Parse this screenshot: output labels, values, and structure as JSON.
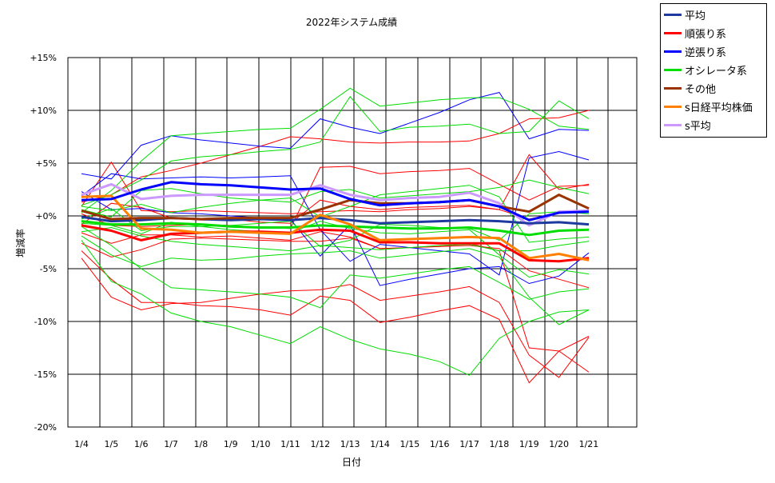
{
  "chart_data": {
    "type": "line",
    "title": "2022年システム成績",
    "xlabel": "日付",
    "ylabel": "増減率",
    "categories": [
      "1/4",
      "1/5",
      "1/6",
      "1/7",
      "1/8",
      "1/9",
      "1/10",
      "1/11",
      "1/12",
      "1/13",
      "1/14",
      "1/15",
      "1/16",
      "1/17",
      "1/18",
      "1/19",
      "1/20",
      "1/21"
    ],
    "ylim": [
      -20,
      15
    ],
    "yticks": [
      {
        "value": 15,
        "label": "+15%"
      },
      {
        "value": 10,
        "label": "+10%"
      },
      {
        "value": 5,
        "label": "+5%"
      },
      {
        "value": 0,
        "label": "+0%"
      },
      {
        "value": -5,
        "label": "-5%"
      },
      {
        "value": -10,
        "label": "-10%"
      },
      {
        "value": -15,
        "label": "-15%"
      },
      {
        "value": -20,
        "label": "-20%"
      }
    ],
    "grid": true,
    "legend_position": "top-right",
    "series": [
      {
        "name": "平均",
        "color": "#1f3a9e",
        "values": [
          -0.1,
          -0.5,
          -0.4,
          -0.2,
          -0.3,
          -0.4,
          -0.3,
          -0.4,
          -0.2,
          -0.4,
          -0.7,
          -0.6,
          -0.5,
          -0.4,
          -0.5,
          -0.7,
          -0.6,
          -0.8
        ]
      },
      {
        "name": "順張り系",
        "color": "#ff0000",
        "values": [
          -0.9,
          -1.4,
          -2.3,
          -1.7,
          -1.6,
          -1.5,
          -1.5,
          -1.6,
          -1.3,
          -1.4,
          -2.5,
          -2.5,
          -2.6,
          -2.6,
          -2.6,
          -4.2,
          -4.3,
          -4.0
        ]
      },
      {
        "name": "逆張り系",
        "color": "#0000ff",
        "values": [
          1.5,
          1.6,
          2.5,
          3.2,
          3.0,
          2.9,
          2.7,
          2.5,
          2.6,
          1.6,
          1.0,
          1.2,
          1.3,
          1.5,
          0.9,
          -0.4,
          0.3,
          0.4
        ]
      },
      {
        "name": "オシレータ系",
        "color": "#00dd00",
        "values": [
          -0.5,
          -0.8,
          -0.8,
          -0.7,
          -0.8,
          -1.0,
          -1.1,
          -1.1,
          -0.9,
          -1.0,
          -1.1,
          -1.2,
          -1.2,
          -1.1,
          -1.4,
          -1.8,
          -1.4,
          -1.3
        ]
      },
      {
        "name": "その他",
        "color": "#993300",
        "values": [
          0.5,
          -0.3,
          -0.2,
          -0.2,
          -0.3,
          -0.2,
          -0.2,
          -0.2,
          0.6,
          1.5,
          1.2,
          1.2,
          1.3,
          1.5,
          0.9,
          0.4,
          2.0,
          0.7
        ]
      },
      {
        "name": "s日経平均株価",
        "color": "#ff8000",
        "values": [
          1.8,
          1.9,
          -1.2,
          -1.3,
          -1.6,
          -1.5,
          -1.6,
          -1.7,
          0.1,
          -0.8,
          -2.3,
          -2.2,
          -2.1,
          -2.0,
          -2.1,
          -4.0,
          -3.6,
          -4.2
        ]
      },
      {
        "name": "s平均",
        "color": "#cc99ff",
        "values": [
          2.0,
          3.0,
          1.6,
          1.9,
          2.0,
          2.0,
          2.0,
          2.0,
          2.9,
          2.0,
          1.5,
          1.7,
          1.8,
          2.2,
          1.2,
          -0.9,
          0.4,
          0.5
        ]
      }
    ],
    "background_series": [
      {
        "color": "#ff0000",
        "values": [
          -0.8,
          1.2,
          0.8,
          -0.2,
          -0.4,
          -0.3,
          -0.6,
          -0.7,
          1.5,
          0.9,
          0.6,
          0.8,
          0.9,
          1.0,
          0.6,
          -0.3,
          0.3,
          0.5
        ]
      },
      {
        "color": "#ff0000",
        "values": [
          -1.6,
          -2.6,
          -1.8,
          -1.8,
          -2.0,
          -1.9,
          -2.1,
          -2.3,
          -1.5,
          -2.0,
          -3.1,
          -3.0,
          -2.9,
          -2.8,
          -3.1,
          -5.2,
          -6.0,
          -6.8
        ]
      },
      {
        "color": "#ff0000",
        "values": [
          -3.3,
          -6.0,
          -8.2,
          -8.2,
          -8.5,
          -8.6,
          -8.9,
          -9.4,
          -7.6,
          -8.0,
          -10.1,
          -9.6,
          -9.0,
          -8.5,
          -9.8,
          -15.8,
          -12.8,
          -11.4
        ]
      },
      {
        "color": "#ff0000",
        "values": [
          -4.0,
          -7.7,
          -8.9,
          -8.3,
          -8.2,
          -7.8,
          -7.4,
          -7.1,
          -7.0,
          -6.5,
          -8.0,
          -7.6,
          -7.2,
          -6.7,
          -8.2,
          -13.2,
          -15.3,
          -11.5
        ]
      },
      {
        "color": "#ff0000",
        "values": [
          -2.6,
          -3.9,
          -3.2,
          -2.2,
          -2.1,
          -2.2,
          -2.3,
          -2.4,
          -2.4,
          -2.1,
          -3.1,
          -3.0,
          -2.9,
          -2.6,
          -3.3,
          -12.5,
          -12.8,
          -14.8
        ]
      },
      {
        "color": "#ff0000",
        "values": [
          0.9,
          5.1,
          0.5,
          0.4,
          0.5,
          0.4,
          0.3,
          0.2,
          0.4,
          0.5,
          0.4,
          0.6,
          0.7,
          0.9,
          0.6,
          5.8,
          2.5,
          3.0
        ]
      },
      {
        "color": "#ff0000",
        "values": [
          1.3,
          2.0,
          3.7,
          4.3,
          5.0,
          5.8,
          6.6,
          7.5,
          7.3,
          7.0,
          6.9,
          7.0,
          7.0,
          7.1,
          7.8,
          9.2,
          9.3,
          10.0
        ]
      },
      {
        "color": "#ff0000",
        "values": [
          0.2,
          -0.9,
          -1.0,
          -0.9,
          -0.8,
          -0.9,
          -1.1,
          -1.2,
          4.6,
          4.7,
          4.0,
          4.2,
          4.3,
          4.5,
          3.0,
          1.5,
          2.8,
          2.9
        ]
      },
      {
        "color": "#0000ff",
        "values": [
          4.0,
          3.5,
          6.7,
          7.6,
          7.2,
          6.9,
          6.6,
          6.4,
          9.2,
          8.4,
          7.8,
          8.8,
          9.8,
          11.0,
          11.7,
          7.3,
          8.2,
          8.1
        ]
      },
      {
        "color": "#0000ff",
        "values": [
          2.3,
          0.6,
          0.7,
          0.3,
          0.2,
          0.0,
          -0.2,
          -0.3,
          -3.8,
          -0.8,
          -6.6,
          -6.0,
          -5.5,
          -5.0,
          -4.8,
          -6.4,
          -5.7,
          -3.5
        ]
      },
      {
        "color": "#0000ff",
        "values": [
          1.9,
          4.0,
          3.5,
          3.6,
          3.7,
          3.6,
          3.7,
          3.8,
          -1.3,
          -4.3,
          -2.7,
          -3.0,
          -3.3,
          -3.6,
          -5.6,
          5.5,
          6.1,
          5.3
        ]
      },
      {
        "color": "#00dd00",
        "values": [
          -1.9,
          -3.7,
          -4.8,
          -4.0,
          -4.2,
          -4.1,
          -3.8,
          -3.6,
          -3.5,
          -3.3,
          -4.0,
          -3.7,
          -3.4,
          -3.1,
          -3.9,
          -7.7,
          -10.3,
          -8.9
        ]
      },
      {
        "color": "#00dd00",
        "values": [
          -2.3,
          -6.2,
          -7.4,
          -9.2,
          -10.0,
          -10.5,
          -11.3,
          -12.1,
          -10.5,
          -11.7,
          -12.6,
          -13.1,
          -13.8,
          -15.1,
          -11.6,
          -10.0,
          -9.1,
          -8.9
        ]
      },
      {
        "color": "#00dd00",
        "values": [
          0.3,
          2.4,
          5.2,
          7.6,
          7.8,
          8.0,
          8.2,
          8.3,
          10.1,
          12.1,
          10.4,
          10.7,
          11.0,
          11.2,
          11.2,
          10.1,
          8.5,
          8.2
        ]
      },
      {
        "color": "#00dd00",
        "values": [
          -0.7,
          -0.9,
          -1.7,
          -0.6,
          -1.0,
          -1.3,
          -1.5,
          -1.6,
          -0.5,
          -1.2,
          -1.6,
          -1.7,
          -1.5,
          -1.3,
          -3.7,
          -5.8,
          -5.1,
          -5.5
        ]
      },
      {
        "color": "#00dd00",
        "values": [
          1.0,
          2.0,
          3.4,
          5.2,
          5.6,
          5.8,
          6.1,
          6.3,
          7.0,
          11.3,
          8.0,
          8.4,
          8.5,
          8.7,
          7.8,
          8.0,
          10.9,
          9.2
        ]
      },
      {
        "color": "#00dd00",
        "values": [
          -1.0,
          -2.8,
          -5.0,
          -6.8,
          -7.0,
          -7.2,
          -7.4,
          -7.7,
          -8.7,
          -5.6,
          -5.9,
          -5.5,
          -5.1,
          -4.8,
          -6.3,
          -7.9,
          -7.2,
          -6.9
        ]
      },
      {
        "color": "#00dd00",
        "values": [
          0.6,
          -0.1,
          2.4,
          2.6,
          2.1,
          1.7,
          1.5,
          1.3,
          2.3,
          2.5,
          1.7,
          1.9,
          2.1,
          2.3,
          2.7,
          3.4,
          2.7,
          2.1
        ]
      },
      {
        "color": "#00dd00",
        "values": [
          -1.5,
          -1.1,
          -1.9,
          -2.4,
          -2.7,
          -2.9,
          -3.1,
          -3.3,
          -2.8,
          -3.0,
          -3.2,
          -3.0,
          -2.8,
          -2.7,
          -3.3,
          -3.3,
          -2.8,
          -2.4
        ]
      },
      {
        "color": "#00dd00",
        "values": [
          -0.3,
          0.7,
          -1.4,
          -1.0,
          -1.0,
          -0.9,
          -0.7,
          -0.5,
          -2.9,
          -2.3,
          -0.8,
          -0.9,
          -1.1,
          -1.2,
          -2.3,
          0.2,
          0.4,
          0.2
        ]
      },
      {
        "color": "#00dd00",
        "values": [
          0.9,
          0.5,
          1.1,
          0.3,
          0.8,
          1.2,
          1.5,
          1.7,
          -0.1,
          0.9,
          2.0,
          2.3,
          2.6,
          2.9,
          1.8,
          -2.5,
          -2.2,
          -2.0
        ]
      }
    ]
  }
}
